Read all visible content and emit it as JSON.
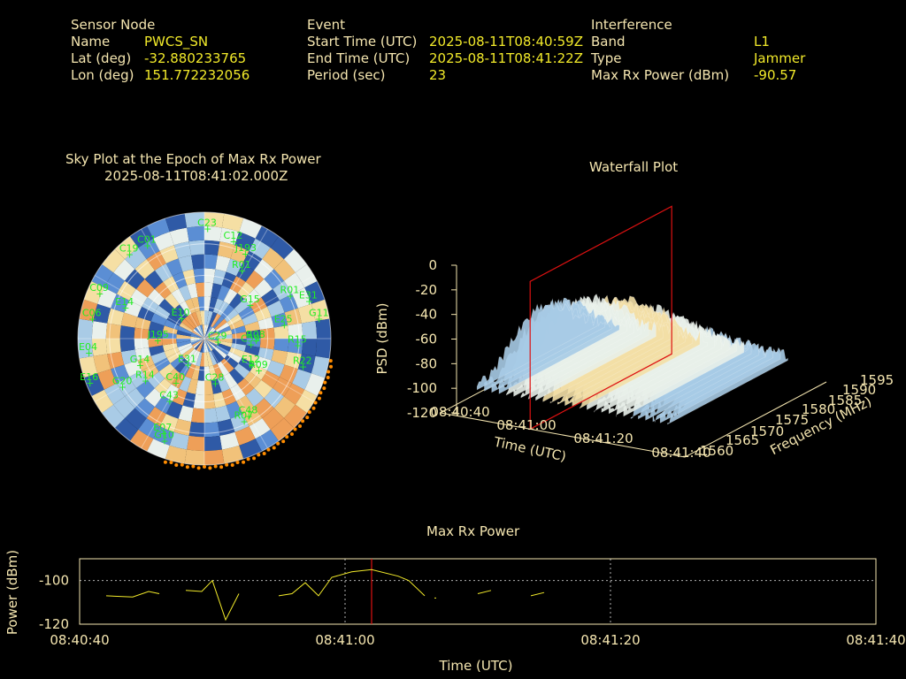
{
  "colors": {
    "label": "#f5e6b0",
    "value": "#f2ea2a",
    "sat": "#22ee22",
    "marker": "#ff8c00",
    "cursor": "#dd1111"
  },
  "header": {
    "sensor": {
      "heading": "Sensor Node",
      "fields": [
        {
          "label": "Name",
          "value": "PWCS_SN"
        },
        {
          "label": "Lat (deg)",
          "value": "-32.880233765"
        },
        {
          "label": "Lon (deg)",
          "value": "151.772232056"
        }
      ]
    },
    "event": {
      "heading": "Event",
      "fields": [
        {
          "label": "Start Time (UTC)",
          "value": "2025-08-11T08:40:59Z"
        },
        {
          "label": "End Time (UTC)",
          "value": "2025-08-11T08:41:22Z"
        },
        {
          "label": "Period (sec)",
          "value": "23"
        }
      ]
    },
    "interference": {
      "heading": "Interference",
      "fields": [
        {
          "label": "Band",
          "value": "L1"
        },
        {
          "label": "Type",
          "value": "Jammer"
        },
        {
          "label": "Max Rx Power (dBm)",
          "value": "-90.57"
        }
      ]
    }
  },
  "chart_data": [
    {
      "type": "heatmap",
      "title": "Sky Plot at the Epoch of Max Rx Power",
      "subtitle": "2025-08-11T08:41:02.000Z",
      "polar_rings": 4,
      "satellites": [
        {
          "id": "C23",
          "az": 1,
          "el": 87
        },
        {
          "id": "C12",
          "az": 16,
          "el": 80
        },
        {
          "id": "J193",
          "az": 25,
          "el": 74
        },
        {
          "id": "R01",
          "az": 28,
          "el": 61
        },
        {
          "id": "G15",
          "az": 53,
          "el": 44
        },
        {
          "id": "R01",
          "az": 63,
          "el": 75
        },
        {
          "id": "E31",
          "az": 70,
          "el": 87
        },
        {
          "id": "G11",
          "az": 80,
          "el": 91
        },
        {
          "id": "E25",
          "az": 80,
          "el": 63
        },
        {
          "id": "R15",
          "az": 94,
          "el": 73
        },
        {
          "id": "R08",
          "az": 92,
          "el": 40
        },
        {
          "id": "C59",
          "az": 97,
          "el": 36
        },
        {
          "id": "R22",
          "az": 106,
          "el": 80
        },
        {
          "id": "E12",
          "az": 120,
          "el": 42
        },
        {
          "id": "R09",
          "az": 121,
          "el": 49
        },
        {
          "id": "C48",
          "az": 151,
          "el": 70
        },
        {
          "id": "R07",
          "az": 155,
          "el": 72
        },
        {
          "id": "G10",
          "az": 202,
          "el": 87
        },
        {
          "id": "E07",
          "az": 204,
          "el": 82
        },
        {
          "id": "G20",
          "az": 240,
          "el": 76
        },
        {
          "id": "E16",
          "az": 249,
          "el": 98
        },
        {
          "id": "E04",
          "az": 263,
          "el": 93
        },
        {
          "id": "C06",
          "az": 280,
          "el": 91
        },
        {
          "id": "C09",
          "az": 293,
          "el": 91
        },
        {
          "id": "C19",
          "az": 318,
          "el": 90
        },
        {
          "id": "C01",
          "az": 328,
          "el": 87
        },
        {
          "id": "E14",
          "az": 291,
          "el": 68
        },
        {
          "id": "E10",
          "az": 310,
          "el": 25
        },
        {
          "id": "J195",
          "az": 268,
          "el": 38
        },
        {
          "id": "E31",
          "az": 214,
          "el": 25
        },
        {
          "id": "C29",
          "az": 105,
          "el": 10
        },
        {
          "id": "C40",
          "az": 214,
          "el": 42
        },
        {
          "id": "C28",
          "az": 168,
          "el": 36
        },
        {
          "id": "R14",
          "az": 235,
          "el": 58
        },
        {
          "id": "G14",
          "az": 248,
          "el": 56
        },
        {
          "id": "C43",
          "az": 210,
          "el": 57
        }
      ],
      "marker_arcs": [
        {
          "from_az": 100,
          "to_az": 198,
          "color": "orange"
        }
      ]
    },
    {
      "type": "area",
      "title": "Waterfall Plot",
      "xlabel": "Time (UTC)",
      "ylabel": "Frequency (MHz)",
      "zlabel": "PSD (dBm)",
      "x_ticks": [
        "08:40:40",
        "08:41:00",
        "08:41:20",
        "08:41:40"
      ],
      "y_ticks": [
        1560,
        1565,
        1570,
        1575,
        1580,
        1585,
        1590,
        1595
      ],
      "z_ticks": [
        0,
        -20,
        -40,
        -60,
        -80,
        -100,
        -120
      ],
      "xlim": [
        "08:40:40",
        "08:41:40"
      ],
      "ylim": [
        1560,
        1595
      ],
      "zlim": [
        -120,
        0
      ],
      "cursor_time": "08:41:02",
      "colormap": [
        "#2a58a8",
        "#5b8fd6",
        "#a7cbe6",
        "#e8efe9",
        "#f3dfa6"
      ]
    },
    {
      "type": "line",
      "title": "Max Rx Power",
      "xlabel": "Time (UTC)",
      "ylabel": "Power (dBm)",
      "x_ticks": [
        "08:40:40",
        "08:41:00",
        "08:41:20",
        "08:41:40"
      ],
      "y_ticks": [
        -100,
        -120
      ],
      "xlim": [
        0,
        60
      ],
      "ylim": [
        -120,
        -90
      ],
      "cursor_x": 22,
      "series": [
        {
          "segments": [
            [
              [
                2.0,
                -107
              ],
              [
                4.0,
                -107.5
              ],
              [
                5.2,
                -105
              ],
              [
                6.0,
                -106
              ]
            ],
            [
              [
                8.0,
                -104.5
              ],
              [
                9.2,
                -105
              ],
              [
                10.0,
                -100
              ],
              [
                11.0,
                -118
              ],
              [
                12.0,
                -106
              ]
            ],
            [
              [
                15.0,
                -107
              ],
              [
                16.0,
                -106
              ],
              [
                17.0,
                -101
              ],
              [
                18.0,
                -107
              ],
              [
                19.0,
                -98.5
              ],
              [
                20.5,
                -96
              ],
              [
                22.0,
                -95
              ],
              [
                24.0,
                -98
              ],
              [
                24.8,
                -100
              ],
              [
                26.0,
                -107
              ]
            ],
            [
              [
                26.8,
                -108
              ]
            ],
            [
              [
                30.0,
                -106
              ],
              [
                31.0,
                -104.5
              ]
            ],
            [
              [
                34.0,
                -107
              ],
              [
                35.0,
                -105.5
              ]
            ]
          ]
        }
      ]
    }
  ]
}
